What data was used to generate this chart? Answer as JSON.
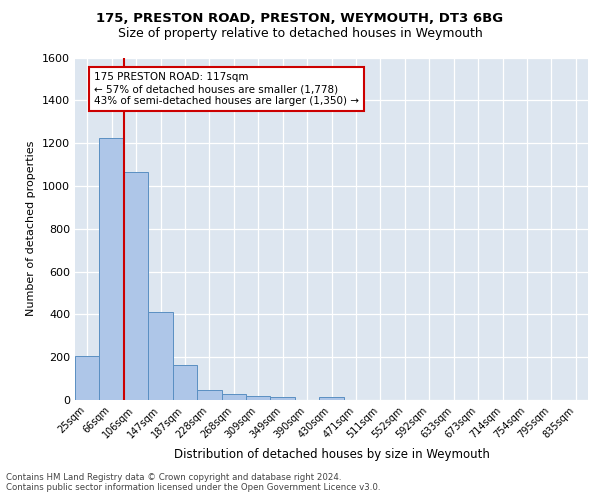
{
  "title1": "175, PRESTON ROAD, PRESTON, WEYMOUTH, DT3 6BG",
  "title2": "Size of property relative to detached houses in Weymouth",
  "xlabel": "Distribution of detached houses by size in Weymouth",
  "ylabel": "Number of detached properties",
  "bar_labels": [
    "25sqm",
    "66sqm",
    "106sqm",
    "147sqm",
    "187sqm",
    "228sqm",
    "268sqm",
    "309sqm",
    "349sqm",
    "390sqm",
    "430sqm",
    "471sqm",
    "511sqm",
    "552sqm",
    "592sqm",
    "633sqm",
    "673sqm",
    "714sqm",
    "754sqm",
    "795sqm",
    "835sqm"
  ],
  "bar_values": [
    205,
    1225,
    1065,
    410,
    163,
    48,
    27,
    18,
    14,
    0,
    15,
    0,
    0,
    0,
    0,
    0,
    0,
    0,
    0,
    0,
    0
  ],
  "bar_color": "#aec6e8",
  "bar_edge_color": "#5a8fc2",
  "property_line_x": 1.5,
  "annotation_text": "175 PRESTON ROAD: 117sqm\n← 57% of detached houses are smaller (1,778)\n43% of semi-detached houses are larger (1,350) →",
  "annotation_box_color": "#ffffff",
  "annotation_box_edge_color": "#cc0000",
  "vline_color": "#cc0000",
  "ylim": [
    0,
    1600
  ],
  "yticks": [
    0,
    200,
    400,
    600,
    800,
    1000,
    1200,
    1400,
    1600
  ],
  "background_color": "#dde6f0",
  "footnote": "Contains HM Land Registry data © Crown copyright and database right 2024.\nContains public sector information licensed under the Open Government Licence v3.0."
}
